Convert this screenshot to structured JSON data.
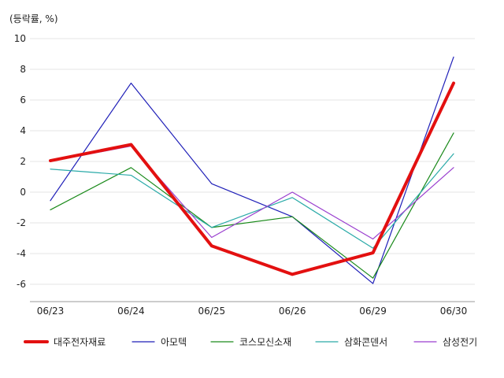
{
  "chart_data": {
    "type": "line",
    "unit_label": "(등락률, %)",
    "categories": [
      "06/23",
      "06/24",
      "06/25",
      "06/26",
      "06/29",
      "06/30"
    ],
    "ylim": [
      -7,
      10
    ],
    "yticks": [
      10,
      8,
      6,
      4,
      2,
      0,
      -2,
      -4,
      -6
    ],
    "grid": true,
    "legend_position": "bottom",
    "series": [
      {
        "name": "대주전자재료",
        "values": [
          2.05,
          3.1,
          -3.5,
          -5.35,
          -3.95,
          7.1
        ],
        "color": "#e31010",
        "width": 4
      },
      {
        "name": "아모텍",
        "values": [
          -0.55,
          7.1,
          0.55,
          -1.6,
          -5.95,
          8.8
        ],
        "color": "#1f1fb8",
        "width": 1.2
      },
      {
        "name": "코스모신소재",
        "values": [
          -1.15,
          1.6,
          -2.3,
          -1.6,
          -5.6,
          3.85
        ],
        "color": "#1a8a1a",
        "width": 1.2
      },
      {
        "name": "삼화콘덴서",
        "values": [
          1.5,
          1.1,
          -2.3,
          -0.35,
          -3.65,
          2.5
        ],
        "color": "#2aaaa8",
        "width": 1.2
      },
      {
        "name": "삼성전기",
        "values": [
          2.0,
          3.0,
          -2.95,
          0.0,
          -3.05,
          1.6
        ],
        "color": "#9a3fcf",
        "width": 1.2
      }
    ]
  }
}
